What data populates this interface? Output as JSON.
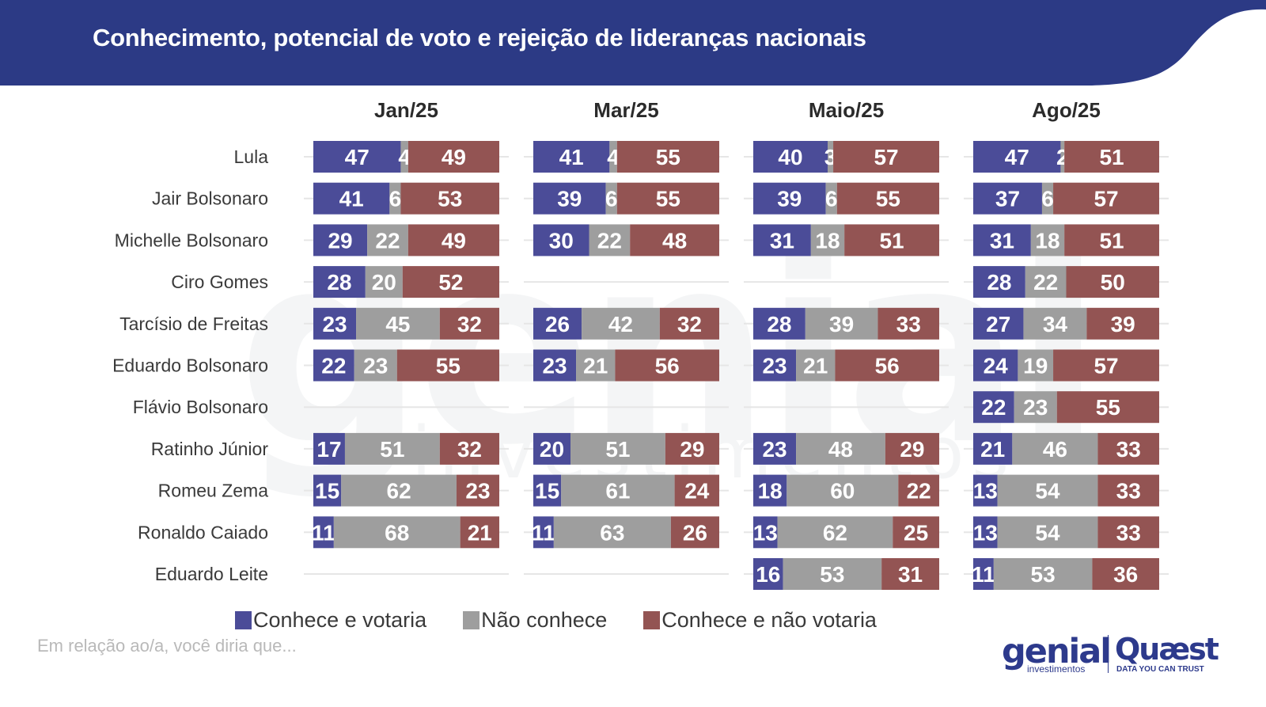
{
  "header": {
    "title": "Conhecimento, potencial de voto e rejeição de lideranças nacionais"
  },
  "watermark": {
    "text": "genial",
    "subtext": "investimentos"
  },
  "colors": {
    "header_bg": "#2c3a85",
    "conhece_votaria": "#4b4c98",
    "nao_conhece": "#9e9e9e",
    "conhece_nao_votaria": "#935453",
    "label_text": "#3a3a3a"
  },
  "chart_data": {
    "type": "bar",
    "stacked": true,
    "orientation": "horizontal",
    "title": "Conhecimento, potencial de voto e rejeição de lideranças nacionais",
    "panels": [
      "Jan/25",
      "Mar/25",
      "Maio/25",
      "Ago/25"
    ],
    "categories": [
      "Lula",
      "Jair Bolsonaro",
      "Michelle Bolsonaro",
      "Ciro Gomes",
      "Tarcísio de Freitas",
      "Eduardo Bolsonaro",
      "Flávio Bolsonaro",
      "Ratinho Júnior",
      "Romeu Zema",
      "Ronaldo Caiado",
      "Eduardo Leite"
    ],
    "series": [
      {
        "name": "Conhece e votaria",
        "color": "#4b4c98"
      },
      {
        "name": "Não conhece",
        "color": "#9e9e9e"
      },
      {
        "name": "Conhece e não votaria",
        "color": "#935453"
      }
    ],
    "values": {
      "Jan/25": [
        [
          47,
          4,
          49
        ],
        [
          41,
          6,
          53
        ],
        [
          29,
          22,
          49
        ],
        [
          28,
          20,
          52
        ],
        [
          23,
          45,
          32
        ],
        [
          22,
          23,
          55
        ],
        null,
        [
          17,
          51,
          32
        ],
        [
          15,
          62,
          23
        ],
        [
          11,
          68,
          21
        ],
        null
      ],
      "Mar/25": [
        [
          41,
          4,
          55
        ],
        [
          39,
          6,
          55
        ],
        [
          30,
          22,
          48
        ],
        null,
        [
          26,
          42,
          32
        ],
        [
          23,
          21,
          56
        ],
        null,
        [
          20,
          51,
          29
        ],
        [
          15,
          61,
          24
        ],
        [
          11,
          63,
          26
        ],
        null
      ],
      "Maio/25": [
        [
          40,
          3,
          57
        ],
        [
          39,
          6,
          55
        ],
        [
          31,
          18,
          51
        ],
        null,
        [
          28,
          39,
          33
        ],
        [
          23,
          21,
          56
        ],
        null,
        [
          23,
          48,
          29
        ],
        [
          18,
          60,
          22
        ],
        [
          13,
          62,
          25
        ],
        [
          16,
          53,
          31
        ]
      ],
      "Ago/25": [
        [
          47,
          2,
          51
        ],
        [
          37,
          6,
          57
        ],
        [
          31,
          18,
          51
        ],
        [
          28,
          22,
          50
        ],
        [
          27,
          34,
          39
        ],
        [
          24,
          19,
          57
        ],
        [
          22,
          23,
          55
        ],
        [
          21,
          46,
          33
        ],
        [
          13,
          54,
          33
        ],
        [
          13,
          54,
          33
        ],
        [
          11,
          53,
          36
        ]
      ]
    },
    "xlim": [
      0,
      100
    ],
    "legend_position": "bottom"
  },
  "legend": {
    "items": [
      "Conhece e votaria",
      "Não conhece",
      "Conhece e não votaria"
    ]
  },
  "footnote": "Em relação ao/a, você diria que...",
  "logos": {
    "genial": "genial",
    "genial_sub": "investimentos",
    "quaest": "Quæst",
    "quaest_sub": "DATA YOU CAN TRUST"
  }
}
